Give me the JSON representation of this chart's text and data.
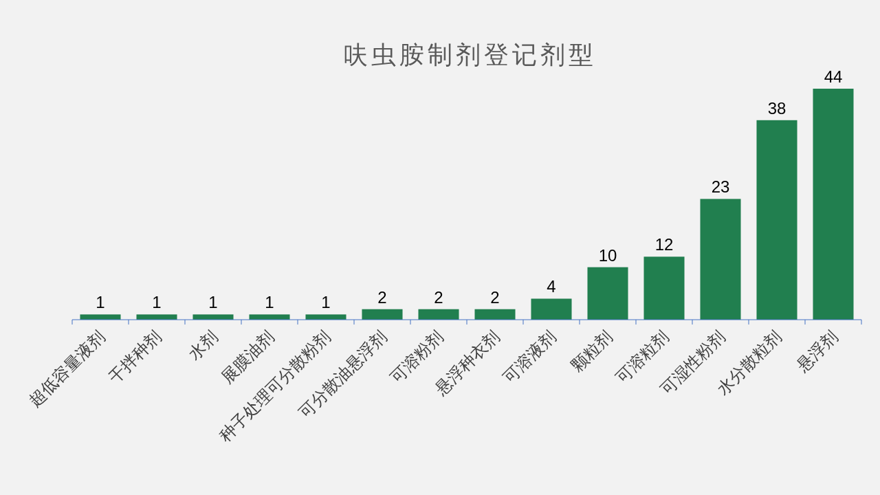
{
  "chart_data": {
    "type": "bar",
    "title": "呋虫胺制剂登记剂型",
    "categories": [
      "超低容量液剂",
      "干拌种剂",
      "水剂",
      "展膜油剂",
      "种子处理可分散粉剂",
      "可分散油悬浮剂",
      "可溶粉剂",
      "悬浮种衣剂",
      "可溶液剂",
      "颗粒剂",
      "可溶粒剂",
      "可湿性粉剂",
      "水分散粒剂",
      "悬浮剂"
    ],
    "values": [
      1,
      1,
      1,
      1,
      1,
      2,
      2,
      2,
      4,
      10,
      12,
      23,
      38,
      44
    ],
    "color": "#217f4f",
    "data_labels": true
  }
}
